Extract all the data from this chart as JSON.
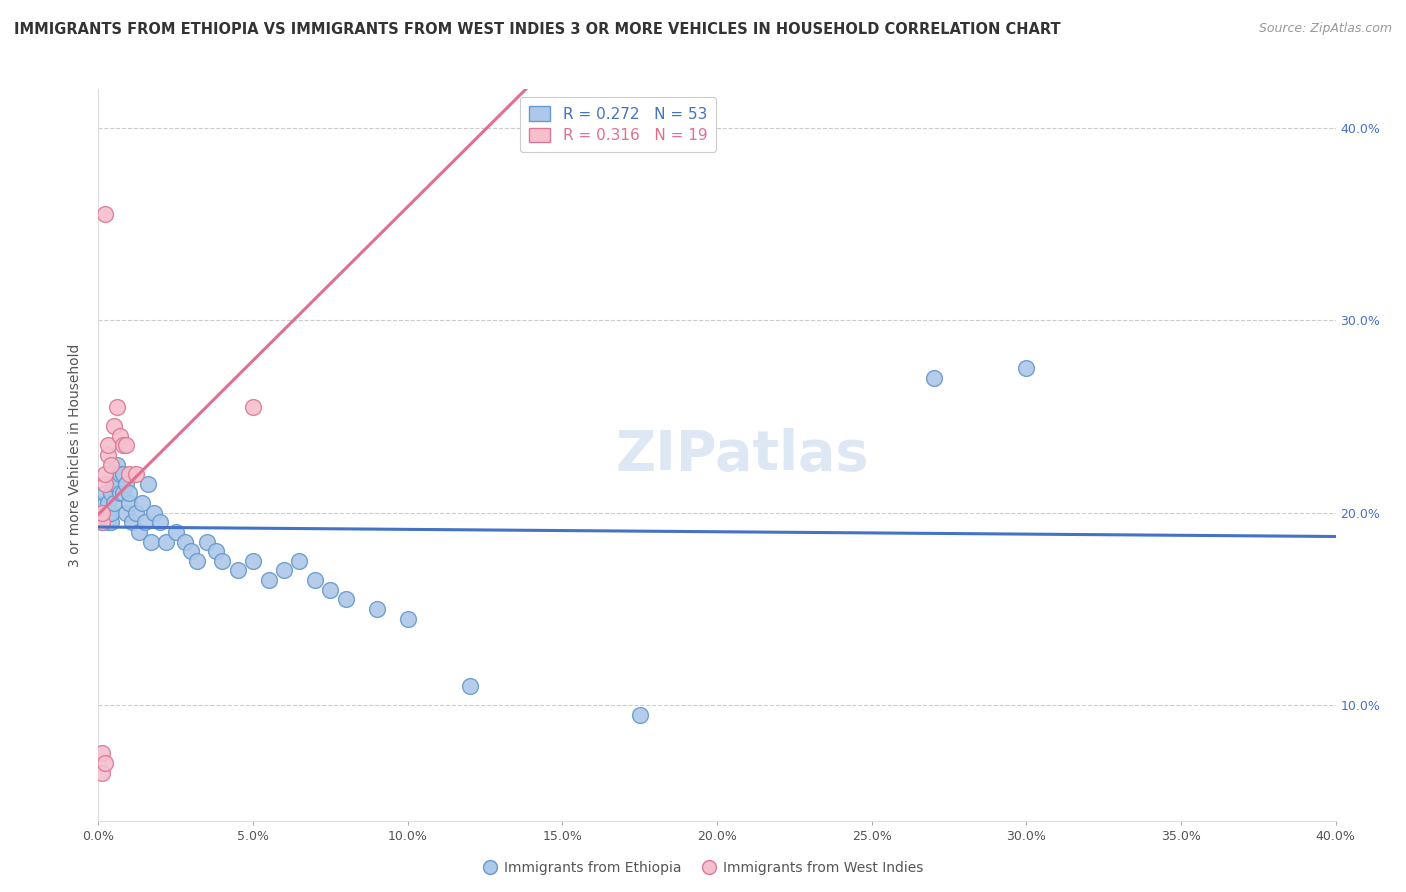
{
  "title": "IMMIGRANTS FROM ETHIOPIA VS IMMIGRANTS FROM WEST INDIES 3 OR MORE VEHICLES IN HOUSEHOLD CORRELATION CHART",
  "source": "Source: ZipAtlas.com",
  "ylabel": "3 or more Vehicles in Household",
  "legend_label_blue": "Immigrants from Ethiopia",
  "legend_label_pink": "Immigrants from West Indies",
  "R_blue": 0.272,
  "N_blue": 53,
  "R_pink": 0.316,
  "N_pink": 19,
  "watermark": "ZIPatlas",
  "xlim": [
    0.0,
    0.4
  ],
  "ylim": [
    0.04,
    0.42
  ],
  "blue_points": [
    [
      0.001,
      0.2
    ],
    [
      0.001,
      0.195
    ],
    [
      0.002,
      0.205
    ],
    [
      0.002,
      0.21
    ],
    [
      0.003,
      0.195
    ],
    [
      0.003,
      0.2
    ],
    [
      0.003,
      0.205
    ],
    [
      0.004,
      0.21
    ],
    [
      0.004,
      0.195
    ],
    [
      0.004,
      0.2
    ],
    [
      0.005,
      0.215
    ],
    [
      0.005,
      0.205
    ],
    [
      0.006,
      0.225
    ],
    [
      0.006,
      0.215
    ],
    [
      0.007,
      0.22
    ],
    [
      0.007,
      0.21
    ],
    [
      0.008,
      0.21
    ],
    [
      0.008,
      0.22
    ],
    [
      0.009,
      0.215
    ],
    [
      0.009,
      0.2
    ],
    [
      0.01,
      0.205
    ],
    [
      0.01,
      0.21
    ],
    [
      0.011,
      0.195
    ],
    [
      0.012,
      0.2
    ],
    [
      0.013,
      0.19
    ],
    [
      0.014,
      0.205
    ],
    [
      0.015,
      0.195
    ],
    [
      0.016,
      0.215
    ],
    [
      0.017,
      0.185
    ],
    [
      0.018,
      0.2
    ],
    [
      0.02,
      0.195
    ],
    [
      0.022,
      0.185
    ],
    [
      0.025,
      0.19
    ],
    [
      0.028,
      0.185
    ],
    [
      0.03,
      0.18
    ],
    [
      0.032,
      0.175
    ],
    [
      0.035,
      0.185
    ],
    [
      0.038,
      0.18
    ],
    [
      0.04,
      0.175
    ],
    [
      0.045,
      0.17
    ],
    [
      0.05,
      0.175
    ],
    [
      0.055,
      0.165
    ],
    [
      0.06,
      0.17
    ],
    [
      0.065,
      0.175
    ],
    [
      0.07,
      0.165
    ],
    [
      0.075,
      0.16
    ],
    [
      0.08,
      0.155
    ],
    [
      0.09,
      0.15
    ],
    [
      0.1,
      0.145
    ],
    [
      0.12,
      0.11
    ],
    [
      0.175,
      0.095
    ],
    [
      0.27,
      0.27
    ],
    [
      0.3,
      0.275
    ]
  ],
  "pink_points": [
    [
      0.001,
      0.195
    ],
    [
      0.001,
      0.2
    ],
    [
      0.002,
      0.215
    ],
    [
      0.002,
      0.22
    ],
    [
      0.003,
      0.23
    ],
    [
      0.003,
      0.235
    ],
    [
      0.004,
      0.225
    ],
    [
      0.005,
      0.245
    ],
    [
      0.006,
      0.255
    ],
    [
      0.007,
      0.24
    ],
    [
      0.008,
      0.235
    ],
    [
      0.009,
      0.235
    ],
    [
      0.01,
      0.22
    ],
    [
      0.012,
      0.22
    ],
    [
      0.05,
      0.255
    ],
    [
      0.001,
      0.065
    ],
    [
      0.001,
      0.075
    ],
    [
      0.002,
      0.07
    ],
    [
      0.002,
      0.355
    ]
  ],
  "blue_color": "#adc8e8",
  "pink_color": "#f5bfcc",
  "blue_edge": "#6699cc",
  "pink_edge": "#dd7799",
  "trend_blue": "#4472c4",
  "trend_pink": "#e07090",
  "title_fontsize": 10.5,
  "source_fontsize": 9,
  "axis_label_fontsize": 10,
  "tick_fontsize": 9,
  "legend_fontsize": 11,
  "watermark_fontsize": 40,
  "watermark_color": "#c8d8ee",
  "watermark_alpha": 0.6,
  "blue_trend_start_x": 0.0,
  "blue_trend_end_x": 0.4,
  "pink_trend_solid_start_x": 0.0,
  "pink_trend_solid_end_x": 0.3,
  "pink_trend_dash_start_x": 0.3,
  "pink_trend_dash_end_x": 0.4
}
